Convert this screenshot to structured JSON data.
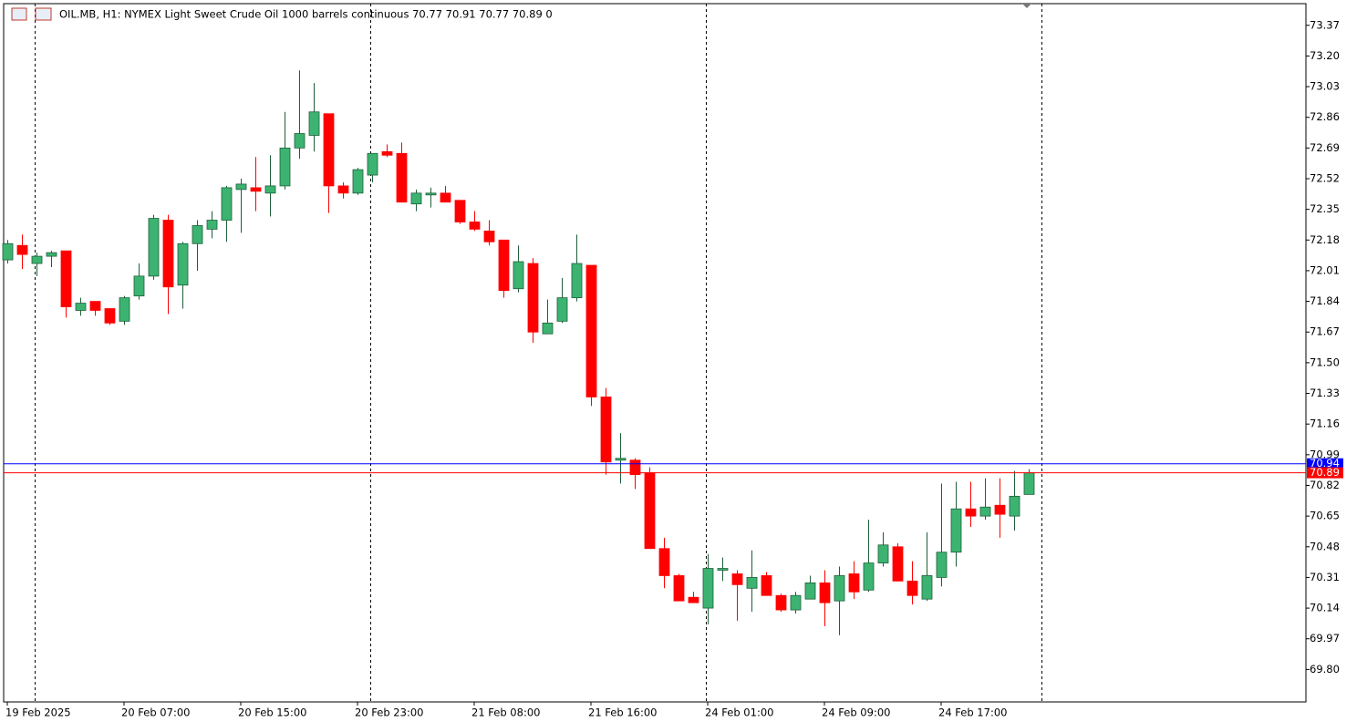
{
  "chart_data": {
    "type": "candlestick",
    "title": "OIL.MB, H1:  NYMEX Light Sweet Crude Oil 1000 barrels continuous  70.77 70.91 70.77 70.89  0",
    "categories": [
      "19 Feb 2025",
      null,
      null,
      null,
      null,
      null,
      null,
      null,
      "20 Feb 07:00",
      null,
      null,
      null,
      null,
      null,
      null,
      null,
      "20 Feb 15:00",
      null,
      null,
      null,
      null,
      null,
      null,
      null,
      "20 Feb 23:00",
      null,
      null,
      null,
      null,
      null,
      null,
      null,
      "21 Feb 08:00",
      null,
      null,
      null,
      null,
      null,
      null,
      null,
      "21 Feb 16:00",
      null,
      null,
      null,
      null,
      null,
      null,
      null,
      "24 Feb 01:00",
      null,
      null,
      null,
      null,
      null,
      null,
      null,
      "24 Feb 09:00",
      null,
      null,
      null,
      null,
      null,
      null,
      null,
      "24 Feb 17:00",
      null,
      null,
      null,
      null,
      null,
      null
    ],
    "open": [
      72.07,
      72.15,
      72.05,
      72.09,
      72.12,
      71.79,
      71.84,
      71.8,
      71.73,
      71.87,
      71.98,
      72.29,
      71.93,
      72.16,
      72.24,
      72.29,
      72.46,
      72.47,
      72.44,
      72.48,
      72.69,
      72.76,
      72.88,
      72.48,
      72.44,
      72.54,
      72.67,
      72.66,
      72.38,
      72.43,
      72.44,
      72.4,
      72.28,
      72.23,
      72.18,
      71.91,
      72.05,
      71.66,
      71.73,
      71.86,
      72.04,
      71.31,
      70.96,
      70.96,
      70.89,
      70.47,
      70.32,
      70.2,
      70.14,
      70.35,
      70.33,
      70.25,
      70.32,
      70.21,
      70.13,
      70.19,
      70.28,
      70.18,
      70.33,
      70.24,
      70.39,
      70.48,
      70.29,
      70.19,
      70.31,
      70.45,
      70.69,
      70.65,
      70.71,
      70.65,
      70.77
    ],
    "high": [
      72.18,
      72.21,
      72.11,
      72.12,
      72.12,
      71.86,
      71.84,
      71.8,
      71.87,
      72.05,
      72.32,
      72.32,
      72.17,
      72.29,
      72.34,
      72.48,
      72.52,
      72.64,
      72.65,
      72.89,
      73.12,
      73.05,
      72.88,
      72.5,
      72.58,
      72.66,
      72.71,
      72.72,
      72.46,
      72.47,
      72.48,
      72.4,
      72.34,
      72.29,
      72.18,
      72.15,
      72.08,
      71.85,
      71.97,
      72.21,
      72.04,
      71.36,
      71.11,
      70.97,
      70.92,
      70.53,
      70.33,
      70.23,
      70.44,
      70.42,
      70.35,
      70.46,
      70.34,
      70.22,
      70.23,
      70.32,
      70.35,
      70.37,
      70.4,
      70.63,
      70.56,
      70.5,
      70.4,
      70.56,
      70.83,
      70.84,
      70.84,
      70.86,
      70.86,
      70.9,
      70.91
    ],
    "low": [
      72.05,
      72.02,
      71.98,
      72.03,
      71.75,
      71.76,
      71.76,
      71.71,
      71.71,
      71.85,
      71.96,
      71.77,
      71.8,
      72.01,
      72.19,
      72.17,
      72.22,
      72.34,
      72.31,
      72.46,
      72.63,
      72.67,
      72.33,
      72.41,
      72.43,
      72.5,
      72.64,
      72.39,
      72.34,
      72.36,
      72.39,
      72.27,
      72.23,
      72.15,
      71.86,
      71.89,
      71.61,
      71.66,
      71.72,
      71.84,
      71.26,
      70.88,
      70.83,
      70.8,
      70.47,
      70.25,
      70.18,
      70.17,
      70.05,
      70.29,
      70.07,
      70.12,
      70.21,
      70.12,
      70.11,
      70.19,
      70.04,
      69.99,
      70.19,
      70.23,
      70.37,
      70.29,
      70.16,
      70.18,
      70.26,
      70.37,
      70.59,
      70.63,
      70.53,
      70.57,
      70.77
    ],
    "close": [
      72.16,
      72.1,
      72.09,
      72.11,
      71.81,
      71.83,
      71.79,
      71.72,
      71.86,
      71.98,
      72.3,
      71.92,
      72.16,
      72.26,
      72.29,
      72.47,
      72.49,
      72.45,
      72.48,
      72.69,
      72.77,
      72.89,
      72.48,
      72.44,
      72.57,
      72.66,
      72.65,
      72.39,
      72.44,
      72.44,
      72.39,
      72.28,
      72.24,
      72.17,
      71.9,
      72.06,
      71.67,
      71.72,
      71.86,
      72.05,
      71.31,
      70.95,
      70.97,
      70.88,
      70.47,
      70.32,
      70.18,
      70.17,
      70.36,
      70.36,
      70.27,
      70.31,
      70.21,
      70.13,
      70.21,
      70.28,
      70.17,
      70.32,
      70.23,
      70.39,
      70.49,
      70.29,
      70.21,
      70.32,
      70.45,
      70.69,
      70.65,
      70.7,
      70.66,
      70.76,
      70.89
    ],
    "up_color": "#3cb371",
    "down_color": "#ff0000",
    "ylim": [
      69.62,
      73.49
    ],
    "yticks": [
      73.37,
      {
        "value": 73.2,
        "label": "73.20"
      },
      73.03,
      72.86,
      72.69,
      72.52,
      72.35,
      72.18,
      72.01,
      71.84,
      71.67,
      {
        "value": 71.5,
        "label": "71.50"
      },
      71.33,
      71.16,
      70.99,
      70.82,
      70.65,
      70.48,
      70.31,
      70.14,
      69.97,
      {
        "value": 69.8,
        "label": "69.80"
      }
    ],
    "price_lines": [
      {
        "value": 70.94,
        "label": "70.94",
        "color": "#0000ff"
      },
      {
        "value": 70.89,
        "label": "70.89",
        "color": "#ff0000"
      }
    ]
  }
}
